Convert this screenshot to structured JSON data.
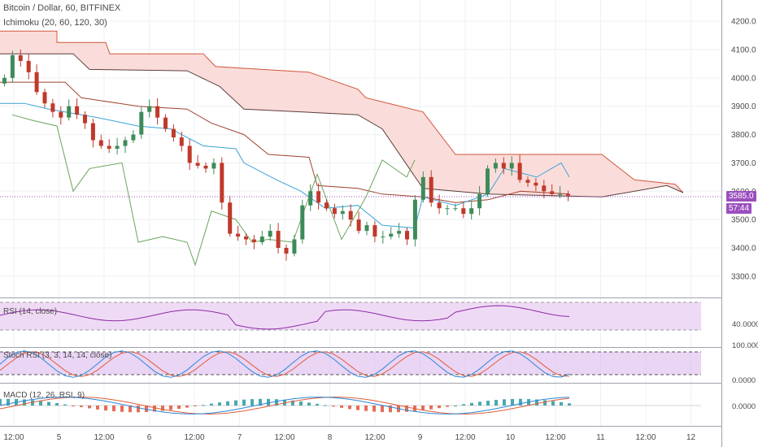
{
  "header": {
    "symbol_title": "Bitcoin / Dollar, 60, BITFINEX",
    "indicator_title": "Ichimoku (20, 60, 120, 30)"
  },
  "panes": {
    "rsi": {
      "label": "RSI (14, close)",
      "axis_label": "40.0000"
    },
    "stoch": {
      "label": "Stoch RSI (3, 3, 14, 14, close)",
      "axis_top": "100.0000",
      "axis_bottom": "0.0000"
    },
    "macd": {
      "label": "MACD (12, 26, RSI, 9)",
      "axis_label": "0.0000"
    }
  },
  "price_axis": {
    "ticks": [
      "4200.0",
      "4100.0",
      "4000.0",
      "3900.0",
      "3800.0",
      "3700.0",
      "3600.0",
      "3500.0",
      "3400.0",
      "3300.0"
    ],
    "last_price": "3585.0",
    "countdown": "57:44"
  },
  "time_axis": {
    "ticks": [
      "12:00",
      "5",
      "12:00",
      "6",
      "12:00",
      "7",
      "12:00",
      "8",
      "12:00",
      "9",
      "12:00",
      "10",
      "12:00",
      "11",
      "12:00",
      "12"
    ]
  },
  "colors": {
    "bull": "#3d8b5a",
    "bear": "#c0392b",
    "cloud_fill": "#f9d7d3",
    "span_a": "#d0563a",
    "span_b": "#5d3d3d",
    "tenkan": "#3aa3d6",
    "kijun": "#a0422f",
    "chikou": "#6ba55a",
    "last_price_line": "#9b4fbf",
    "rsi_line": "#8e2aa6",
    "rsi_band": "#efdaf5",
    "stoch_k": "#2d86d6",
    "stoch_d": "#e05d3a",
    "macd_bar_pos": "#2a9aa0",
    "macd_bar_neg": "#e2553a"
  },
  "chart_data": {
    "type": "candlestick",
    "title": "Bitcoin / Dollar, 60, BITFINEX",
    "ylim": [
      3225,
      4275
    ],
    "close_series": [
      4000,
      4080,
      4060,
      4020,
      3950,
      3910,
      3880,
      3860,
      3900,
      3870,
      3840,
      3780,
      3760,
      3750,
      3760,
      3780,
      3800,
      3880,
      3900,
      3860,
      3820,
      3790,
      3760,
      3700,
      3690,
      3680,
      3700,
      3560,
      3450,
      3440,
      3430,
      3420,
      3440,
      3460,
      3400,
      3380,
      3430,
      3550,
      3600,
      3560,
      3540,
      3520,
      3530,
      3500,
      3460,
      3480,
      3440,
      3440,
      3450,
      3460,
      3430,
      3570,
      3650,
      3560,
      3540,
      3540,
      3540,
      3520,
      3540,
      3590,
      3680,
      3700,
      3680,
      3700,
      3640,
      3630,
      3620,
      3600,
      3590,
      3590,
      3585
    ]
  }
}
